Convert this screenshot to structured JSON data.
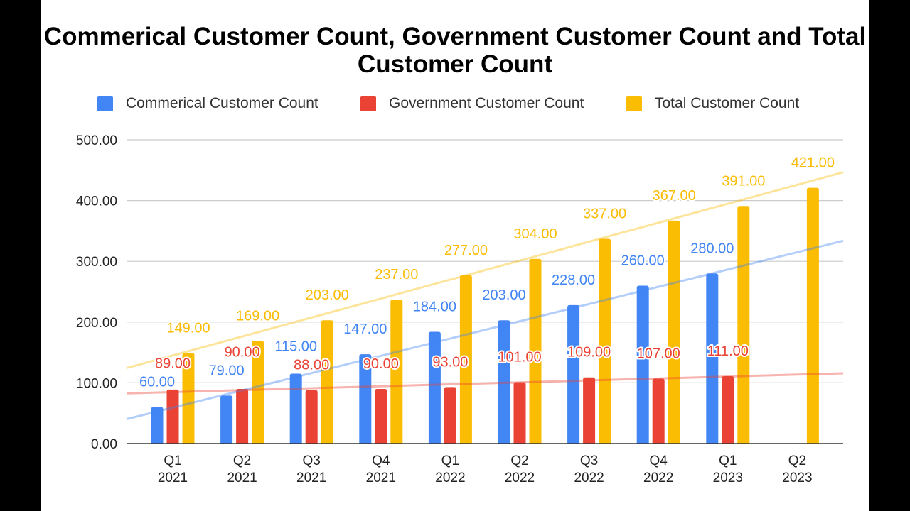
{
  "chart_data": {
    "type": "bar",
    "title": "Commerical Customer Count, Government Customer Count and Total Customer Count",
    "categories": [
      [
        "Q1",
        "2021"
      ],
      [
        "Q2",
        "2021"
      ],
      [
        "Q3",
        "2021"
      ],
      [
        "Q4",
        "2021"
      ],
      [
        "Q1",
        "2022"
      ],
      [
        "Q2",
        "2022"
      ],
      [
        "Q3",
        "2022"
      ],
      [
        "Q4",
        "2022"
      ],
      [
        "Q1",
        "2023"
      ],
      [
        "Q2",
        "2023"
      ]
    ],
    "series": [
      {
        "name": "Commerical Customer Count",
        "color": "#4285f4",
        "values": [
          60,
          79,
          115,
          147,
          184,
          203,
          228,
          260,
          280,
          null
        ],
        "trendline": "linear"
      },
      {
        "name": "Government Customer Count",
        "color": "#ea4335",
        "values": [
          89,
          90,
          88,
          90,
          93,
          101,
          109,
          107,
          111,
          null
        ],
        "trendline": "linear"
      },
      {
        "name": "Total Customer Count",
        "color": "#fbbc04",
        "values": [
          149,
          169,
          203,
          237,
          277,
          304,
          337,
          367,
          391,
          421
        ],
        "trendline": "linear"
      }
    ],
    "ylim": [
      0,
      500
    ],
    "yticks": [
      "0.00",
      "100.00",
      "200.00",
      "300.00",
      "400.00",
      "500.00"
    ],
    "xlabel": "",
    "ylabel": "",
    "grid": true,
    "legend": "top",
    "data_labels": true
  }
}
